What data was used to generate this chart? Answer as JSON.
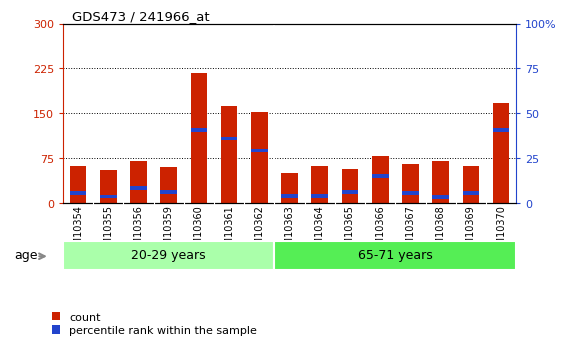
{
  "title": "GDS473 / 241966_at",
  "samples": [
    "GSM10354",
    "GSM10355",
    "GSM10356",
    "GSM10359",
    "GSM10360",
    "GSM10361",
    "GSM10362",
    "GSM10363",
    "GSM10364",
    "GSM10365",
    "GSM10366",
    "GSM10367",
    "GSM10368",
    "GSM10369",
    "GSM10370"
  ],
  "count_values": [
    62,
    55,
    70,
    60,
    218,
    162,
    152,
    50,
    62,
    57,
    78,
    65,
    70,
    62,
    168
  ],
  "percentile_left": [
    17,
    11,
    25,
    18,
    122,
    108,
    88,
    12,
    12,
    18,
    45,
    17,
    10,
    17,
    122
  ],
  "percentile_thickness": 6,
  "groups": [
    {
      "label": "20-29 years",
      "start": 0,
      "end": 7,
      "color": "#aaffaa"
    },
    {
      "label": "65-71 years",
      "start": 7,
      "end": 15,
      "color": "#55ee55"
    }
  ],
  "ylim_left": [
    0,
    300
  ],
  "ylim_right": [
    0,
    100
  ],
  "yticks_left": [
    0,
    75,
    150,
    225,
    300
  ],
  "yticks_right": [
    0,
    25,
    50,
    75,
    100
  ],
  "ytick_labels_right": [
    "0",
    "25",
    "50",
    "75",
    "100%"
  ],
  "bar_color_red": "#cc2200",
  "bar_color_blue": "#2244cc",
  "bar_width": 0.55,
  "bg_color": "#cccccc",
  "plot_bg": "#ffffff",
  "xlabel_age": "age",
  "legend_count": "count",
  "legend_percentile": "percentile rank within the sample",
  "group_separator": 6.5
}
